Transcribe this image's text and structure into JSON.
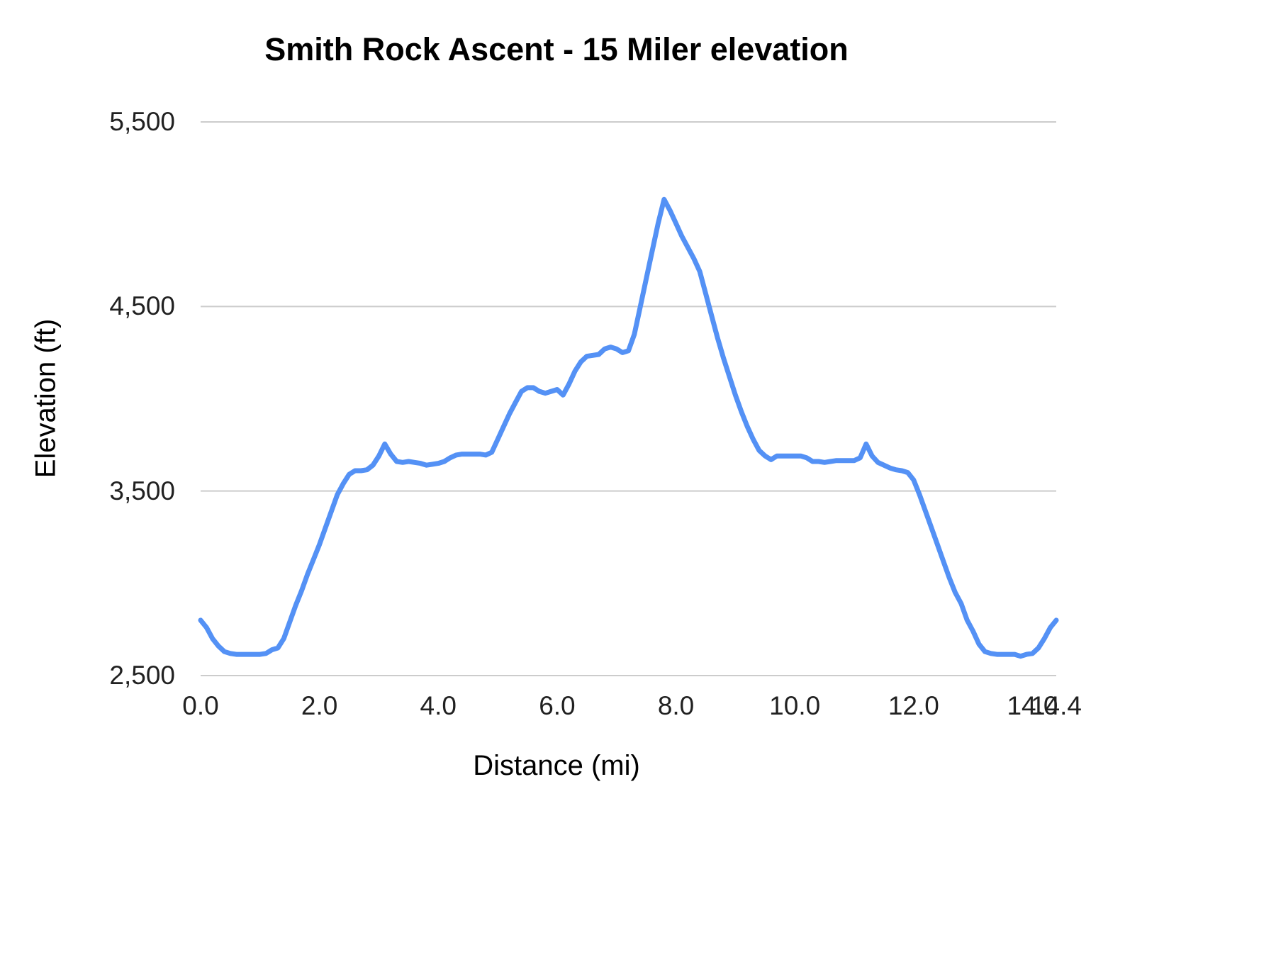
{
  "chart": {
    "title": "Smith Rock Ascent - 15 Miler elevation",
    "x_axis_title": "Distance (mi)",
    "y_axis_title": "Elevation (ft)"
  },
  "chart_data": {
    "type": "line",
    "title": "Smith Rock Ascent - 15 Miler elevation",
    "xlabel": "Distance (mi)",
    "ylabel": "Elevation (ft)",
    "xlim": [
      0,
      14.4
    ],
    "ylim": [
      2500,
      5500
    ],
    "grid": "horizontal",
    "legend": "none",
    "line_color": "#5491f5",
    "gridline_color": "#cccccc",
    "x_ticks": [
      {
        "value": 0,
        "label": "0.0"
      },
      {
        "value": 2,
        "label": "2.0"
      },
      {
        "value": 4,
        "label": "4.0"
      },
      {
        "value": 6,
        "label": "6.0"
      },
      {
        "value": 8,
        "label": "8.0"
      },
      {
        "value": 10,
        "label": "10.0"
      },
      {
        "value": 12,
        "label": "12.0"
      },
      {
        "value": 14,
        "label": "14.0"
      },
      {
        "value": 14.4,
        "label": "14.4"
      }
    ],
    "y_ticks": [
      {
        "value": 2500,
        "label": "2,500"
      },
      {
        "value": 3500,
        "label": "3,500"
      },
      {
        "value": 4500,
        "label": "4,500"
      },
      {
        "value": 5500,
        "label": "5,500"
      }
    ],
    "series": [
      {
        "name": "elevation",
        "x_start": 0,
        "x_step": 0.1,
        "values": [
          2800,
          2760,
          2700,
          2660,
          2630,
          2620,
          2615,
          2615,
          2615,
          2615,
          2615,
          2620,
          2640,
          2650,
          2700,
          2790,
          2880,
          2960,
          3050,
          3130,
          3210,
          3300,
          3390,
          3480,
          3540,
          3590,
          3610,
          3610,
          3615,
          3640,
          3690,
          3755,
          3700,
          3660,
          3655,
          3660,
          3655,
          3650,
          3640,
          3645,
          3650,
          3660,
          3680,
          3695,
          3700,
          3700,
          3700,
          3700,
          3695,
          3710,
          3780,
          3850,
          3920,
          3980,
          4040,
          4060,
          4060,
          4040,
          4030,
          4040,
          4050,
          4020,
          4080,
          4150,
          4200,
          4230,
          4235,
          4240,
          4270,
          4280,
          4270,
          4250,
          4260,
          4350,
          4500,
          4650,
          4800,
          4950,
          5080,
          5020,
          4950,
          4880,
          4820,
          4760,
          4690,
          4570,
          4450,
          4330,
          4220,
          4120,
          4020,
          3930,
          3850,
          3780,
          3720,
          3690,
          3670,
          3690,
          3690,
          3690,
          3690,
          3690,
          3680,
          3660,
          3660,
          3655,
          3660,
          3665,
          3665,
          3665,
          3665,
          3680,
          3755,
          3690,
          3655,
          3640,
          3625,
          3615,
          3610,
          3600,
          3560,
          3480,
          3390,
          3300,
          3210,
          3120,
          3030,
          2950,
          2890,
          2800,
          2740,
          2670,
          2630,
          2620,
          2615,
          2615,
          2615,
          2615,
          2605,
          2615,
          2620,
          2650,
          2700,
          2760,
          2800
        ]
      }
    ]
  }
}
